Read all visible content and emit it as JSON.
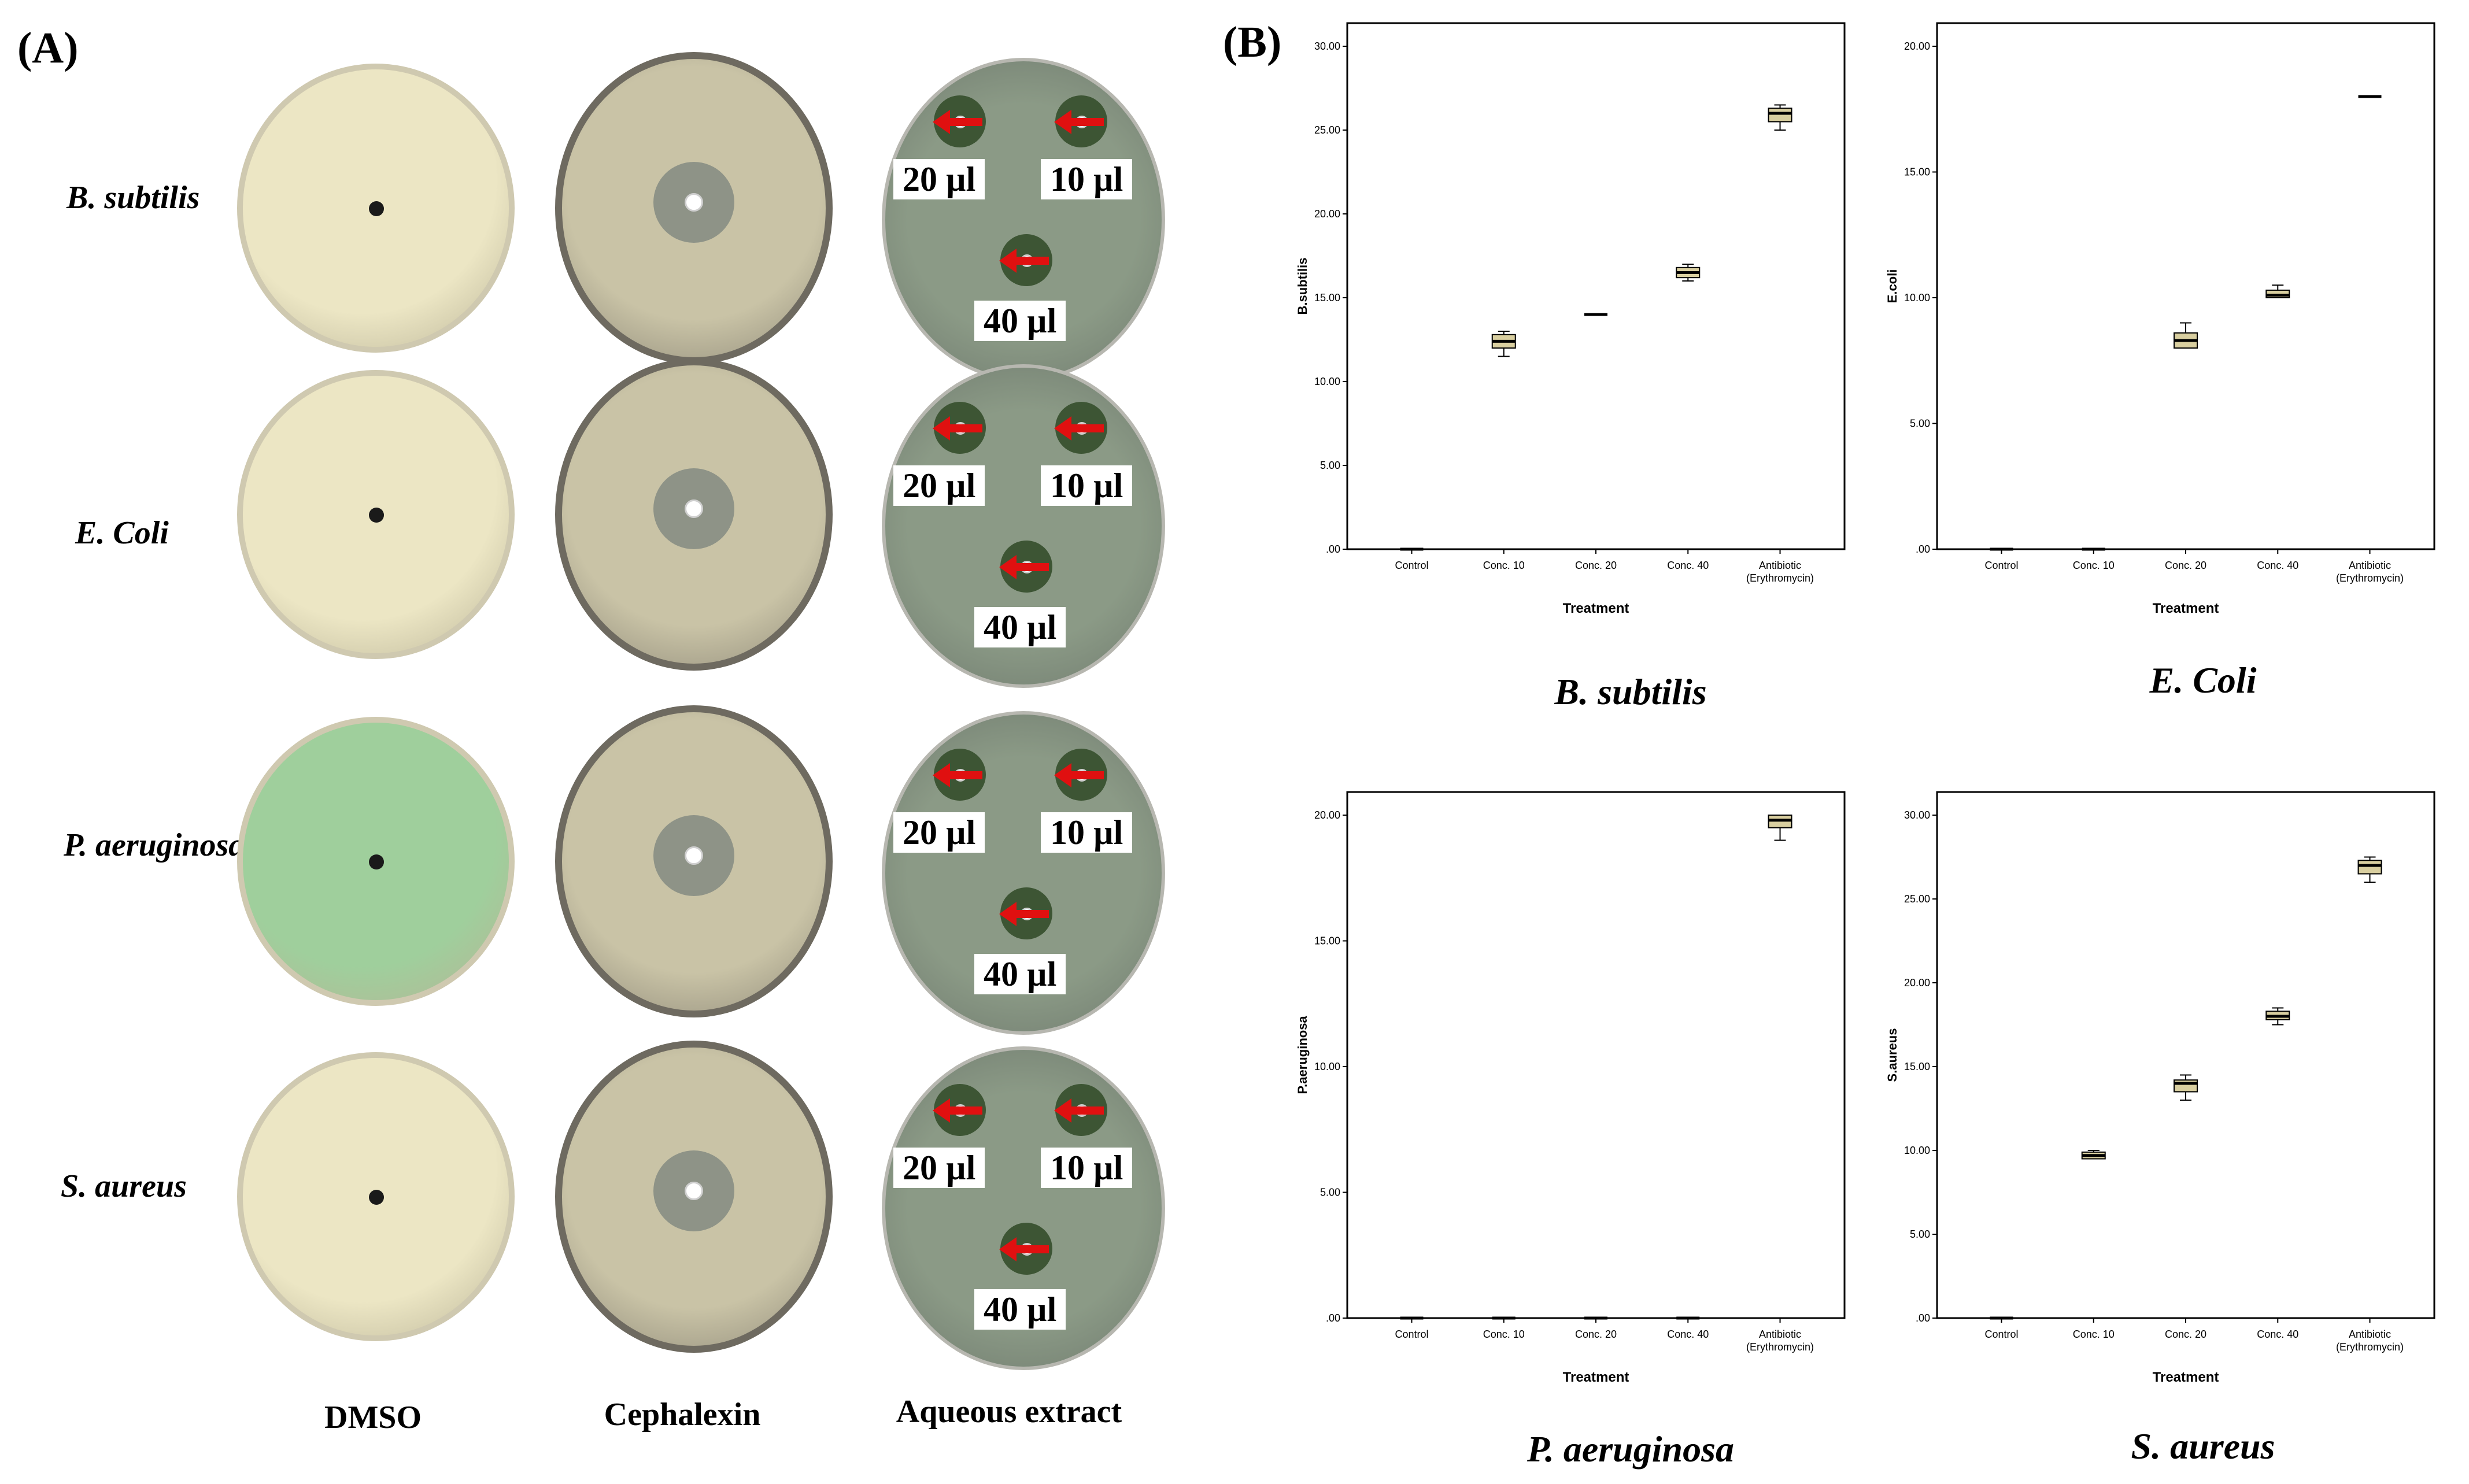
{
  "panel_a": {
    "tag": "(A)",
    "rows": [
      "B. subtilis",
      "E. Coli",
      "P. aeruginosa",
      "S. aureus"
    ],
    "columns": [
      "DMSO",
      "Cephalexin",
      "Aqueous extract"
    ],
    "volumes": [
      "20 µl",
      "10 µl",
      "40 µl"
    ],
    "colors": {
      "dmso_agar": "#ece6c4",
      "cephalexin_agar": "#c9c3a6",
      "extract_agar": "#8b9a86",
      "pseudomonas_agar": "#9fcf9c",
      "arrow": "#e01010"
    }
  },
  "panel_b": {
    "tag": "(B)"
  },
  "chart_data": [
    {
      "type": "box",
      "title": "B. subtilis",
      "xlabel": "Treatment",
      "ylabel": "B.subtilis",
      "categories": [
        "Control",
        "Conc. 10",
        "Conc. 20",
        "Conc. 40",
        "Antibiotic (Erythromycin)"
      ],
      "yticks": [
        ".00",
        "5.00",
        "10.00",
        "15.00",
        "20.00",
        "25.00",
        "30.00"
      ],
      "ylim": [
        0,
        30
      ],
      "boxes": [
        {
          "min": 0,
          "q1": 0,
          "median": 0,
          "q3": 0,
          "max": 0
        },
        {
          "min": 11.5,
          "q1": 12.0,
          "median": 12.4,
          "q3": 12.8,
          "max": 13.0
        },
        {
          "min": 14,
          "q1": 14,
          "median": 14,
          "q3": 14,
          "max": 14
        },
        {
          "min": 16.0,
          "q1": 16.2,
          "median": 16.5,
          "q3": 16.8,
          "max": 17.0
        },
        {
          "min": 25.0,
          "q1": 25.5,
          "median": 26.0,
          "q3": 26.3,
          "max": 26.5
        }
      ]
    },
    {
      "type": "box",
      "title": "E. Coli",
      "xlabel": "Treatment",
      "ylabel": "E.coli",
      "categories": [
        "Control",
        "Conc. 10",
        "Conc. 20",
        "Conc. 40",
        "Antibiotic (Erythromycin)"
      ],
      "yticks": [
        ".00",
        "5.00",
        "10.00",
        "15.00",
        "20.00"
      ],
      "ylim": [
        0,
        20
      ],
      "boxes": [
        {
          "min": 0,
          "q1": 0,
          "median": 0,
          "q3": 0,
          "max": 0
        },
        {
          "min": 0,
          "q1": 0,
          "median": 0,
          "q3": 0,
          "max": 0
        },
        {
          "min": 8.0,
          "q1": 8.0,
          "median": 8.3,
          "q3": 8.6,
          "max": 9.0
        },
        {
          "min": 10.0,
          "q1": 10.0,
          "median": 10.1,
          "q3": 10.3,
          "max": 10.5
        },
        {
          "min": 18,
          "q1": 18,
          "median": 18,
          "q3": 18,
          "max": 18
        }
      ]
    },
    {
      "type": "box",
      "title": "P. aeruginosa",
      "xlabel": "Treatment",
      "ylabel": "P.aeruginosa",
      "categories": [
        "Control",
        "Conc. 10",
        "Conc. 20",
        "Conc. 40",
        "Antibiotic (Erythromycin)"
      ],
      "yticks": [
        ".00",
        "5.00",
        "10.00",
        "15.00",
        "20.00"
      ],
      "ylim": [
        0,
        20
      ],
      "boxes": [
        {
          "min": 0,
          "q1": 0,
          "median": 0,
          "q3": 0,
          "max": 0
        },
        {
          "min": 0,
          "q1": 0,
          "median": 0,
          "q3": 0,
          "max": 0
        },
        {
          "min": 0,
          "q1": 0,
          "median": 0,
          "q3": 0,
          "max": 0
        },
        {
          "min": 0,
          "q1": 0,
          "median": 0,
          "q3": 0,
          "max": 0
        },
        {
          "min": 19.0,
          "q1": 19.5,
          "median": 19.8,
          "q3": 20.0,
          "max": 20.0
        }
      ]
    },
    {
      "type": "box",
      "title": "S. aureus",
      "xlabel": "Treatment",
      "ylabel": "S.aureus",
      "categories": [
        "Control",
        "Conc. 10",
        "Conc. 20",
        "Conc. 40",
        "Antibiotic (Erythromycin)"
      ],
      "yticks": [
        ".00",
        "5.00",
        "10.00",
        "15.00",
        "20.00",
        "25.00",
        "30.00"
      ],
      "ylim": [
        0,
        30
      ],
      "boxes": [
        {
          "min": 0,
          "q1": 0,
          "median": 0,
          "q3": 0,
          "max": 0
        },
        {
          "min": 9.5,
          "q1": 9.5,
          "median": 9.7,
          "q3": 9.9,
          "max": 10.0
        },
        {
          "min": 13.0,
          "q1": 13.5,
          "median": 14.0,
          "q3": 14.2,
          "max": 14.5
        },
        {
          "min": 17.5,
          "q1": 17.8,
          "median": 18.0,
          "q3": 18.3,
          "max": 18.5
        },
        {
          "min": 26.0,
          "q1": 26.5,
          "median": 27.0,
          "q3": 27.3,
          "max": 27.5
        }
      ]
    }
  ],
  "chart_style": {
    "box_fill": "#d9cfa0",
    "stroke": "#000000",
    "frame": "#000000"
  }
}
